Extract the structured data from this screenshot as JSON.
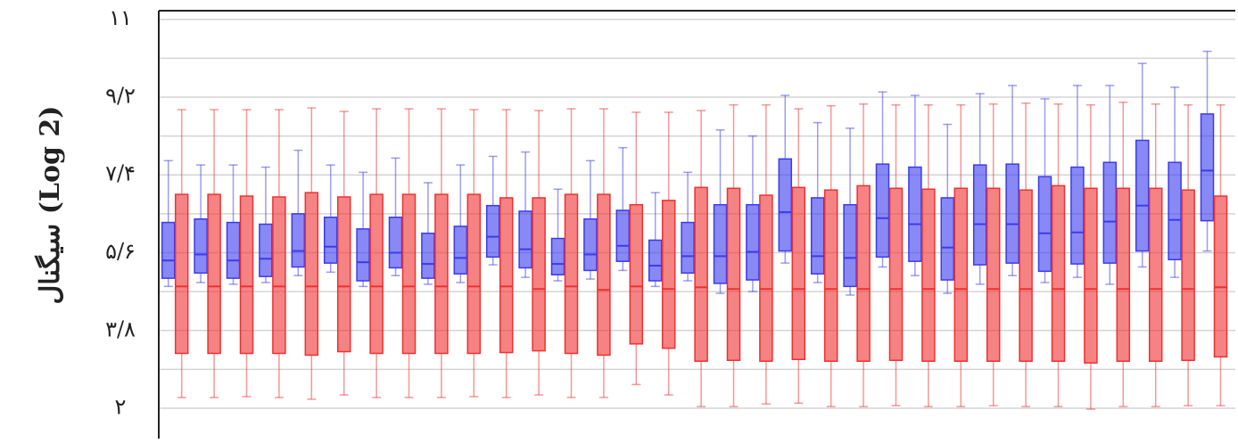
{
  "chart_data": {
    "type": "boxplot",
    "y_label": "سیگنال (Log 2)",
    "categories": [
      null,
      null,
      null,
      null,
      null,
      null,
      null,
      null,
      null,
      null,
      null,
      null,
      null,
      null,
      null,
      null,
      null,
      null,
      null,
      null,
      null,
      null,
      null,
      null,
      null,
      null,
      null,
      null,
      null,
      null,
      null,
      null,
      null
    ],
    "ylim": [
      1.3,
      11.2
    ],
    "yticks": [
      {
        "value": 2,
        "label": "۲"
      },
      {
        "value": 3.8,
        "label": "۳/۸"
      },
      {
        "value": 5.6,
        "label": "۵/۶"
      },
      {
        "value": 7.4,
        "label": "۷/۴"
      },
      {
        "value": 9.2,
        "label": "۹/۲"
      },
      {
        "value": 11,
        "label": "۱۱"
      }
    ],
    "minor_yticks": [
      2.9,
      4.7,
      6.5,
      8.3,
      10.1
    ],
    "grid": true,
    "series": [
      {
        "color": "#3a3af0",
        "min": [
          4.82,
          4.91,
          4.87,
          4.91,
          5.07,
          5.15,
          4.82,
          5.07,
          4.87,
          4.91,
          5.32,
          5.03,
          4.95,
          4.99,
          5.19,
          4.82,
          4.95,
          4.66,
          4.7,
          5.36,
          4.91,
          4.62,
          5.27,
          5.07,
          4.66,
          4.87,
          5.07,
          4.91,
          5.03,
          4.87,
          5.27,
          5.03,
          5.64
        ],
        "q1": [
          5.01,
          5.13,
          5.01,
          5.05,
          5.27,
          5.36,
          4.95,
          5.25,
          5.01,
          5.11,
          5.5,
          5.25,
          5.09,
          5.19,
          5.4,
          4.95,
          5.13,
          4.89,
          4.97,
          5.64,
          5.11,
          4.82,
          5.5,
          5.4,
          4.97,
          5.32,
          5.36,
          5.17,
          5.34,
          5.36,
          5.64,
          5.44,
          6.34
        ],
        "median": [
          5.42,
          5.56,
          5.42,
          5.46,
          5.64,
          5.74,
          5.38,
          5.6,
          5.34,
          5.48,
          5.97,
          5.68,
          5.34,
          5.56,
          5.76,
          5.3,
          5.52,
          5.52,
          5.62,
          6.54,
          5.52,
          5.48,
          6.4,
          6.26,
          5.72,
          6.26,
          6.26,
          6.05,
          6.07,
          6.32,
          6.69,
          6.36,
          7.5
        ],
        "q3": [
          6.3,
          6.38,
          6.3,
          6.26,
          6.5,
          6.42,
          6.15,
          6.42,
          6.05,
          6.21,
          6.69,
          6.56,
          5.93,
          6.38,
          6.58,
          5.89,
          6.3,
          6.71,
          6.71,
          7.77,
          6.87,
          6.71,
          7.65,
          7.58,
          6.87,
          7.63,
          7.65,
          7.36,
          7.58,
          7.69,
          8.2,
          7.69,
          8.81
        ],
        "max": [
          7.73,
          7.63,
          7.63,
          7.58,
          7.97,
          7.63,
          7.46,
          7.79,
          7.22,
          7.63,
          7.83,
          7.93,
          7.07,
          7.73,
          8.03,
          6.99,
          7.46,
          8.44,
          8.3,
          9.24,
          8.61,
          8.48,
          9.32,
          9.24,
          8.57,
          9.28,
          9.47,
          9.16,
          9.47,
          9.47,
          9.98,
          9.43,
          10.26
        ]
      },
      {
        "color": "#f03030",
        "min": [
          2.25,
          2.25,
          2.27,
          2.25,
          2.21,
          2.31,
          2.25,
          2.25,
          2.25,
          2.27,
          2.25,
          2.31,
          2.25,
          2.25,
          2.55,
          2.31,
          2.04,
          2.04,
          2.1,
          2.12,
          2.04,
          2.04,
          2.06,
          2.04,
          2.04,
          2.06,
          2.04,
          2.04,
          1.98,
          2.04,
          2.04,
          2.06,
          2.06
        ],
        "q1": [
          3.27,
          3.27,
          3.27,
          3.27,
          3.23,
          3.31,
          3.27,
          3.27,
          3.27,
          3.27,
          3.29,
          3.33,
          3.27,
          3.23,
          3.49,
          3.39,
          3.09,
          3.11,
          3.09,
          3.13,
          3.09,
          3.09,
          3.11,
          3.09,
          3.09,
          3.09,
          3.09,
          3.09,
          3.05,
          3.09,
          3.09,
          3.11,
          3.19
        ],
        "median": [
          4.82,
          4.82,
          4.82,
          4.82,
          4.82,
          4.82,
          4.82,
          4.82,
          4.82,
          4.82,
          4.82,
          4.76,
          4.82,
          4.74,
          4.82,
          4.76,
          4.8,
          4.76,
          4.76,
          4.76,
          4.76,
          4.76,
          4.76,
          4.76,
          4.76,
          4.76,
          4.76,
          4.76,
          4.76,
          4.76,
          4.76,
          4.76,
          4.8
        ],
        "q3": [
          6.95,
          6.95,
          6.91,
          6.89,
          6.99,
          6.89,
          6.95,
          6.95,
          6.95,
          6.95,
          6.87,
          6.87,
          6.95,
          6.95,
          6.71,
          6.81,
          7.11,
          7.09,
          6.93,
          7.11,
          7.05,
          7.15,
          7.09,
          7.07,
          7.09,
          7.09,
          7.05,
          7.15,
          7.09,
          7.09,
          7.09,
          7.05,
          6.91
        ],
        "max": [
          8.91,
          8.91,
          8.91,
          8.91,
          8.95,
          8.87,
          8.93,
          8.93,
          8.93,
          8.91,
          8.91,
          8.89,
          8.93,
          8.93,
          8.85,
          8.85,
          8.89,
          9.02,
          9.02,
          8.93,
          9.0,
          9.04,
          9.02,
          9.02,
          9.02,
          9.04,
          9.06,
          9.04,
          9.02,
          9.08,
          9.04,
          9.02,
          9.02
        ]
      }
    ]
  }
}
